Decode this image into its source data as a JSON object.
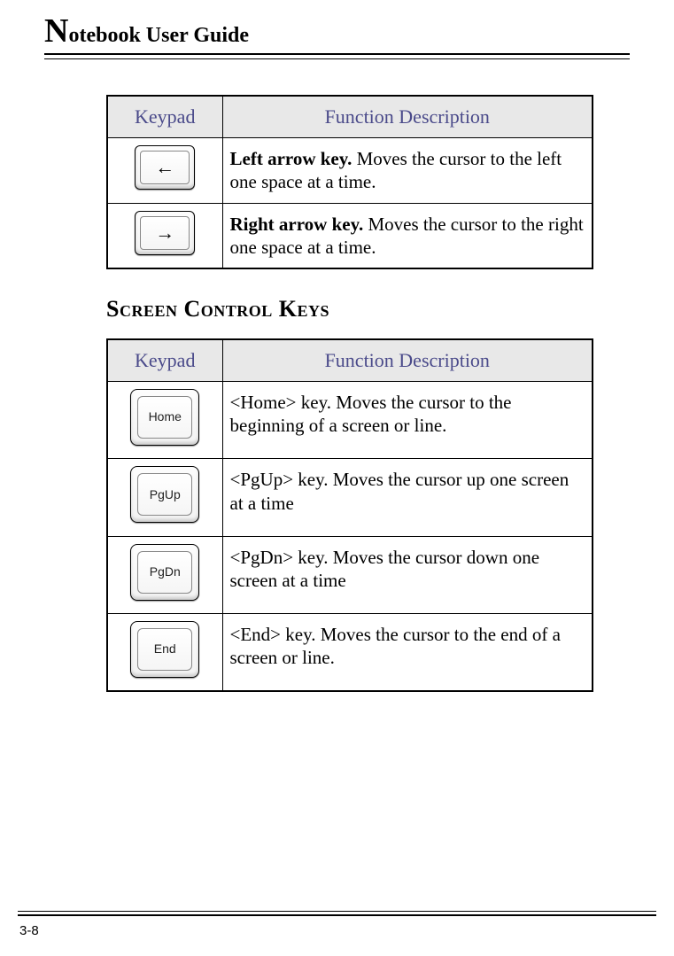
{
  "header": {
    "title_prefix": "N",
    "title_rest": "otebook User Guide"
  },
  "table1": {
    "headers": {
      "keypad": "Keypad",
      "desc": "Function Description"
    },
    "rows": [
      {
        "arrow": "←",
        "bold": "Left arrow key.",
        "text": " Moves the cursor to the left one space at a time."
      },
      {
        "arrow": "→",
        "bold": "Right arrow key.",
        "text": " Moves the cursor to the right one space at a time."
      }
    ]
  },
  "section_title": "Screen Control Keys",
  "table2": {
    "headers": {
      "keypad": "Keypad",
      "desc": "Function Description"
    },
    "rows": [
      {
        "keylabel": "Home",
        "text": "<Home> key. Moves the cursor to the beginning of a screen or line."
      },
      {
        "keylabel": "PgUp",
        "text": "<PgUp> key. Moves the cursor up one screen at a time"
      },
      {
        "keylabel": "PgDn",
        "text": "<PgDn> key. Moves the cursor down one screen at a time"
      },
      {
        "keylabel": "End",
        "text": "<End> key. Moves the cursor to the end of a screen or line."
      }
    ]
  },
  "page_number": "3-8",
  "colors": {
    "header_text": "#4a4a8a",
    "header_bg": "#e8e8e8",
    "border": "#000000"
  }
}
